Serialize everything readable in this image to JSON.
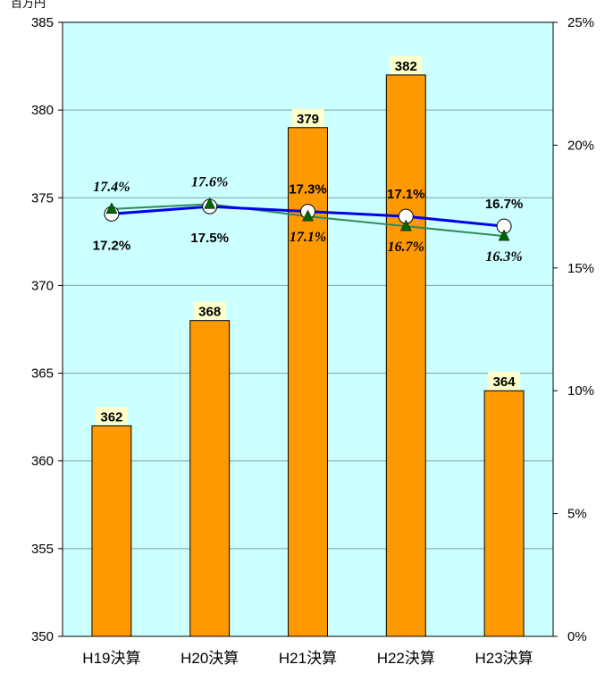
{
  "chart_data": {
    "type": "bar",
    "unit_label": "百万円",
    "categories": [
      "H19決算",
      "H20決算",
      "H21決算",
      "H22決算",
      "H23決算"
    ],
    "bar_values": [
      362,
      368,
      379,
      382,
      364
    ],
    "bar_labels": [
      "362",
      "368",
      "379",
      "382",
      "364"
    ],
    "y_left": {
      "min": 350,
      "max": 385,
      "step": 5,
      "ticks": [
        "350",
        "355",
        "360",
        "365",
        "370",
        "375",
        "380",
        "385"
      ]
    },
    "y_right": {
      "min": 0,
      "max": 25,
      "step": 5,
      "ticks": [
        "0%",
        "5%",
        "10%",
        "15%",
        "20%",
        "25%"
      ]
    },
    "lines": [
      {
        "marker": "circle",
        "color": "#0000ee",
        "values": [
          17.2,
          17.5,
          17.3,
          17.1,
          16.7
        ],
        "labels": [
          "17.2%",
          "17.5%",
          "17.3%",
          "17.1%",
          "16.7%"
        ]
      },
      {
        "marker": "triangle",
        "color": "#2e8b57",
        "values": [
          17.4,
          17.6,
          17.1,
          16.7,
          16.3
        ],
        "labels": [
          "17.4%",
          "17.6%",
          "17.1%",
          "16.7%",
          "16.3%"
        ]
      }
    ],
    "colors": {
      "plot_bg": "#ccffff",
      "bar": "#ff9900",
      "bar_label_bg": "#ffffcc",
      "triangle_fill": "#006600"
    },
    "grid": true
  }
}
